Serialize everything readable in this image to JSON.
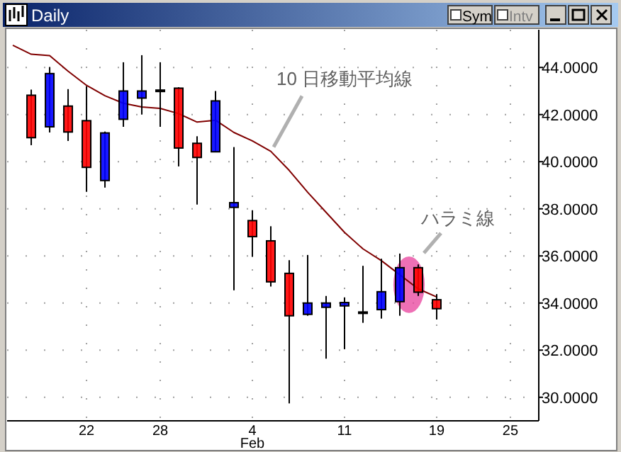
{
  "chart_data": {
    "type": "candlestick",
    "title": "Daily",
    "categories": [
      null,
      null,
      null,
      null,
      "22",
      null,
      null,
      null,
      "28",
      null,
      null,
      null,
      null,
      "4\nFeb",
      null,
      null,
      null,
      null,
      "11",
      null,
      null,
      null,
      null,
      "19",
      null,
      null,
      null,
      "25"
    ],
    "ohlc": [
      null,
      [
        42.82,
        43.06,
        40.7,
        41.02
      ],
      [
        41.48,
        44.02,
        41.24,
        43.74
      ],
      [
        42.36,
        43.08,
        40.88,
        41.26
      ],
      [
        41.74,
        43.2,
        38.72,
        39.76
      ],
      [
        39.2,
        41.28,
        38.9,
        41.22
      ],
      [
        41.8,
        44.22,
        41.48,
        43.0
      ],
      [
        42.7,
        44.52,
        42.0,
        43.0
      ],
      [
        43.04,
        44.22,
        41.48,
        43.04
      ],
      [
        43.12,
        43.16,
        39.8,
        40.58
      ],
      [
        40.78,
        41.08,
        38.18,
        40.18
      ],
      [
        40.42,
        43.0,
        40.4,
        42.58
      ],
      [
        38.06,
        40.62,
        34.54,
        38.26
      ],
      [
        37.5,
        37.94,
        35.96,
        36.82
      ],
      [
        36.64,
        37.26,
        34.7,
        34.9
      ],
      [
        35.26,
        35.82,
        29.74,
        33.46
      ],
      [
        33.52,
        36.04,
        33.46,
        34.0
      ],
      [
        33.82,
        34.3,
        31.64,
        34.0
      ],
      [
        33.88,
        34.24,
        32.04,
        34.02
      ],
      [
        33.62,
        35.58,
        33.16,
        33.62
      ],
      [
        33.72,
        35.88,
        33.34,
        34.48
      ],
      [
        34.06,
        36.1,
        33.46,
        35.5
      ],
      [
        35.5,
        35.64,
        34.3,
        34.46
      ],
      [
        34.14,
        34.38,
        33.3,
        33.76
      ],
      null,
      null,
      null,
      null
    ],
    "colors": [
      null,
      "#ff0000",
      "#0000ff",
      "#ff0000",
      "#ff0000",
      "#0000ff",
      "#0000ff",
      "#0000ff",
      "#000000",
      "#ff0000",
      "#ff0000",
      "#0000ff",
      "#0000ff",
      "#ff0000",
      "#ff0000",
      "#ff0000",
      "#0000ff",
      "#0000ff",
      "#0000ff",
      "#000000",
      "#0000ff",
      "#0000ff",
      "#ff0000",
      "#ff0000",
      null,
      null,
      null,
      null
    ],
    "series": [
      {
        "type": "line",
        "name": "10 日移動平均線",
        "color": "#800000",
        "values": [
          44.94,
          44.56,
          44.5,
          43.84,
          43.24,
          42.8,
          42.48,
          42.32,
          42.26,
          42.04,
          41.68,
          41.76,
          41.24,
          40.88,
          40.44,
          39.63,
          38.7,
          37.85,
          37.0,
          36.3,
          35.8,
          35.2,
          34.6,
          34.26,
          null,
          null,
          null,
          null
        ]
      }
    ],
    "ylim": [
      29.0,
      45.6
    ],
    "yticks": [
      {
        "value": 30,
        "label": "30.0000"
      },
      {
        "value": 32,
        "label": "32.0000"
      },
      {
        "value": 34,
        "label": "34.0000"
      },
      {
        "value": 36,
        "label": "36.0000"
      },
      {
        "value": 38,
        "label": "38.0000"
      },
      {
        "value": 40,
        "label": "40.0000"
      },
      {
        "value": 42,
        "label": "42.0000"
      },
      {
        "value": 44,
        "label": "44.0000"
      }
    ],
    "grid": true,
    "annotations": [
      "ハラミ線",
      "Sym",
      "Intv"
    ]
  }
}
